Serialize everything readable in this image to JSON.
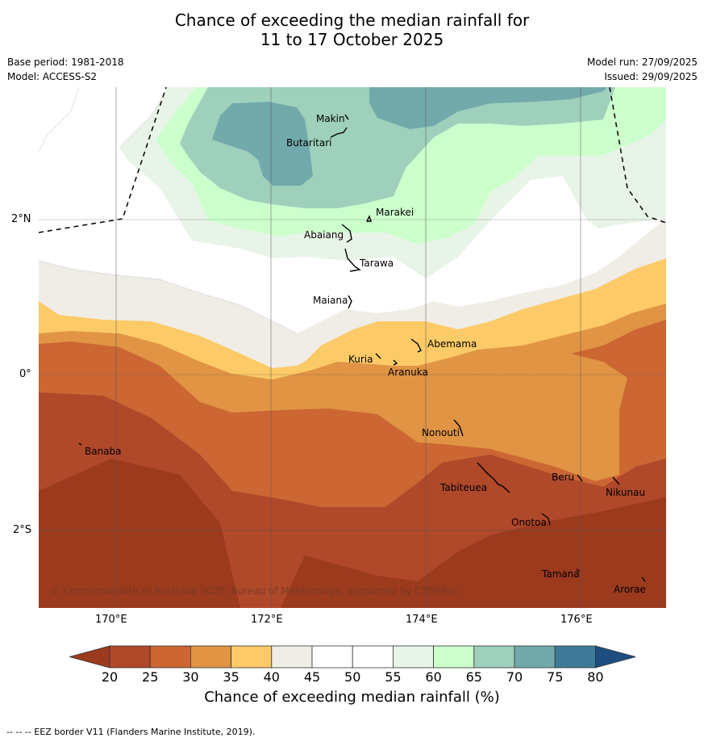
{
  "title_line1": "Chance of exceeding the median rainfall for",
  "title_line2": "11 to 17 October 2025",
  "base_period": "Base period: 1981-2018",
  "model": "Model: ACCESS-S2",
  "model_run": "Model run: 27/09/2025",
  "issued": "Issued: 29/09/2025",
  "copyright": "© Commonwealth of Australia 2025, Bureau of Meteorology, supported by COSPPac",
  "footer": "--  --  -- EEZ border V11 (Flanders Marine Institute, 2019).",
  "colorbar_label": "Chance of exceeding median rainfall (%)",
  "lon_ticks": [
    "170°E",
    "172°E",
    "174°E",
    "176°E"
  ],
  "lat_ticks": [
    "2°N",
    "0°",
    "2°S"
  ],
  "places": {
    "makin": "Makin",
    "butaritari": "Butaritari",
    "marakei": "Marakei",
    "abaiang": "Abaiang",
    "tarawa": "Tarawa",
    "maiana": "Maiana",
    "abemama": "Abemama",
    "kuria": "Kuria",
    "aranuka": "Aranuka",
    "nonouti": "Nonouti",
    "banaba": "Banaba",
    "tabiteuea": "Tabiteuea",
    "beru": "Beru",
    "nikunau": "Nikunau",
    "onotoa": "Onotoa",
    "tamana": "Tamana",
    "arorae": "Arorae"
  },
  "colorbar": {
    "ticks": [
      "20",
      "25",
      "30",
      "35",
      "40",
      "45",
      "50",
      "55",
      "60",
      "65",
      "70",
      "75",
      "80"
    ],
    "colors": [
      "#9c3a1e",
      "#b0482a",
      "#cc6633",
      "#e09444",
      "#fcca66",
      "#f0ece6",
      "#ffffff",
      "#ffffff",
      "#e8f4e8",
      "#ccffcc",
      "#9ed0bc",
      "#72a9ab",
      "#3e7998",
      "#1e4d80"
    ]
  }
}
